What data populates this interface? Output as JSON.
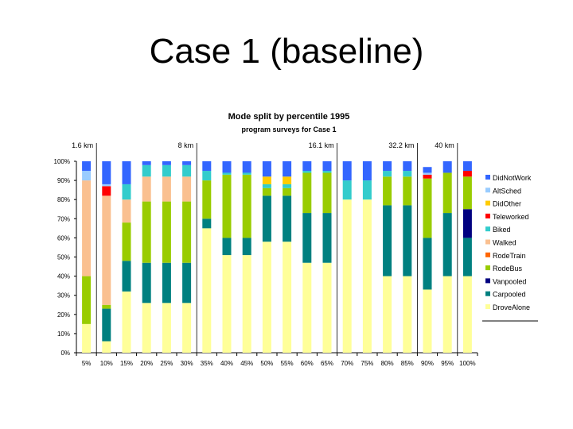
{
  "slide": {
    "title": "Case 1 (baseline)"
  },
  "chart_data": {
    "type": "bar",
    "stacked": true,
    "percent": true,
    "title": "Mode split by percentile 1995",
    "subtitle": "program surveys for Case 1",
    "categories": [
      "5%",
      "10%",
      "15%",
      "20%",
      "25%",
      "30%",
      "35%",
      "40%",
      "45%",
      "50%",
      "55%",
      "60%",
      "65%",
      "70%",
      "75%",
      "80%",
      "85%",
      "90%",
      "95%",
      "100%"
    ],
    "y_ticks": [
      "0%",
      "10%",
      "20%",
      "30%",
      "40%",
      "50%",
      "60%",
      "70%",
      "80%",
      "90%",
      "100%"
    ],
    "ylim": [
      0,
      100
    ],
    "grid": false,
    "legend_position": "right",
    "distance_markers": [
      {
        "label": "1.6 km",
        "after": "5%"
      },
      {
        "label": "8 km",
        "after": "30%"
      },
      {
        "label": "16.1 km",
        "after": "65%"
      },
      {
        "label": "32.2 km",
        "after": "85%"
      },
      {
        "label": "40 km",
        "after": "95%"
      }
    ],
    "series": [
      {
        "name": "DroveAlone",
        "color": "#ffff99",
        "values": [
          15,
          6,
          32,
          26,
          26,
          26,
          65,
          51,
          51,
          58,
          58,
          47,
          47,
          80,
          80,
          40,
          40,
          33,
          40,
          40
        ]
      },
      {
        "name": "Carpooled",
        "color": "#008080",
        "values": [
          0,
          17,
          16,
          21,
          21,
          21,
          5,
          9,
          9,
          24,
          24,
          26,
          26,
          0,
          0,
          37,
          37,
          27,
          33,
          20
        ]
      },
      {
        "name": "Vanpooled",
        "color": "#000080",
        "values": [
          0,
          0,
          0,
          0,
          0,
          0,
          0,
          0,
          0,
          0,
          0,
          0,
          0,
          0,
          0,
          0,
          0,
          0,
          0,
          15
        ]
      },
      {
        "name": "RodeBus",
        "color": "#99cc00",
        "values": [
          25,
          2,
          20,
          32,
          32,
          32,
          20,
          33,
          33,
          4,
          4,
          21,
          21,
          0,
          0,
          15,
          15,
          31,
          21,
          17
        ]
      },
      {
        "name": "RodeTrain",
        "color": "#ff6600",
        "values": [
          0,
          0,
          0,
          0,
          0,
          0,
          0,
          0,
          0,
          0,
          0,
          0,
          0,
          0,
          0,
          0,
          0,
          0,
          0,
          0
        ]
      },
      {
        "name": "Walked",
        "color": "#fac090",
        "values": [
          50,
          57,
          12,
          13,
          13,
          13,
          0,
          0,
          0,
          0,
          0,
          0,
          0,
          0,
          0,
          0,
          0,
          0,
          0,
          0
        ]
      },
      {
        "name": "Biked",
        "color": "#33cccc",
        "values": [
          0,
          0,
          8,
          6,
          6,
          6,
          5,
          1,
          1,
          2,
          2,
          1,
          1,
          10,
          10,
          3,
          3,
          0,
          0,
          0
        ]
      },
      {
        "name": "Teleworked",
        "color": "#ff0000",
        "values": [
          0,
          5,
          0,
          0,
          0,
          0,
          0,
          0,
          0,
          0,
          0,
          0,
          0,
          0,
          0,
          0,
          0,
          2,
          0,
          3
        ]
      },
      {
        "name": "DidOther",
        "color": "#ffcc00",
        "values": [
          0,
          0,
          0,
          0,
          0,
          0,
          0,
          0,
          0,
          4,
          4,
          0,
          0,
          0,
          0,
          0,
          0,
          0,
          0,
          0
        ]
      },
      {
        "name": "AltSched",
        "color": "#99ccff",
        "values": [
          5,
          1,
          0,
          0,
          0,
          0,
          0,
          0,
          0,
          0,
          0,
          0,
          0,
          0,
          0,
          0,
          0,
          1,
          0,
          0
        ]
      },
      {
        "name": "DidNotWork",
        "color": "#3366ff",
        "values": [
          5,
          12,
          12,
          2,
          2,
          2,
          5,
          6,
          6,
          8,
          8,
          5,
          5,
          10,
          10,
          5,
          5,
          3,
          6,
          5
        ]
      }
    ]
  }
}
